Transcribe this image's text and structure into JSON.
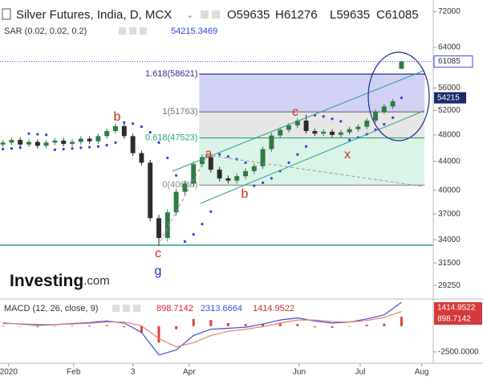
{
  "chart_data": [
    {
      "type": "candlestick",
      "title": "Silver Futures, India, D, MCX",
      "ohlc_labels": [
        "O59635",
        "H61276",
        "L59635",
        "C61085"
      ],
      "x": [
        1,
        4,
        7,
        10,
        13,
        16,
        19,
        22,
        25,
        28,
        31,
        34,
        37,
        40,
        43,
        46,
        49,
        52,
        55,
        58,
        61,
        64,
        67,
        70,
        73,
        76,
        79,
        82,
        85,
        88,
        91,
        94,
        97,
        100,
        103,
        106,
        109,
        112,
        115,
        118,
        121,
        124,
        127,
        130,
        133,
        136,
        139
      ],
      "open": [
        46500,
        46800,
        47200,
        46500,
        46900,
        46300,
        46800,
        47100,
        46600,
        46900,
        47400,
        47000,
        47800,
        48600,
        49400,
        47800,
        45200,
        43800,
        36500,
        34200,
        37200,
        39800,
        40900,
        43600,
        44600,
        42800,
        41600,
        41300,
        41900,
        42600,
        43300,
        45800,
        47900,
        48800,
        49500,
        50300,
        48600,
        48200,
        48500,
        48000,
        48400,
        48900,
        49300,
        50300,
        51800,
        52700,
        59635
      ],
      "high": [
        47200,
        47600,
        47600,
        47300,
        47300,
        47200,
        47500,
        47500,
        47300,
        47800,
        47800,
        48200,
        49000,
        49800,
        49800,
        48200,
        45600,
        44200,
        36900,
        37600,
        40200,
        41300,
        44000,
        45000,
        45000,
        43200,
        42000,
        42300,
        43000,
        43700,
        46200,
        48300,
        49200,
        49900,
        50700,
        51300,
        49000,
        48900,
        48900,
        48800,
        49300,
        49700,
        50700,
        52200,
        53100,
        54000,
        61276
      ],
      "low": [
        46100,
        46400,
        46100,
        46100,
        45900,
        45900,
        46400,
        46200,
        46200,
        46500,
        46600,
        46600,
        47400,
        48200,
        47400,
        44800,
        43400,
        36100,
        33300,
        33800,
        36800,
        39400,
        40500,
        43200,
        42400,
        41200,
        40900,
        40900,
        41500,
        42200,
        42900,
        45400,
        47500,
        48400,
        49100,
        48200,
        47800,
        47800,
        47600,
        47600,
        48000,
        48500,
        48900,
        49900,
        51400,
        52300,
        59635
      ],
      "close": [
        46800,
        47200,
        46500,
        46900,
        46300,
        46800,
        47100,
        46600,
        46900,
        47400,
        47000,
        47800,
        48600,
        49400,
        47800,
        45200,
        43800,
        36500,
        34200,
        37200,
        39800,
        40900,
        43600,
        44600,
        42800,
        41600,
        41300,
        41900,
        42600,
        43300,
        45800,
        47900,
        48800,
        49500,
        50300,
        48600,
        48200,
        48500,
        48000,
        48400,
        48900,
        49300,
        50300,
        51800,
        52700,
        53600,
        61085
      ],
      "color_up": "#2f7a45",
      "color_down": "#2b2b2b",
      "log_scale": true,
      "xlim": [
        0,
        150
      ],
      "xticks": [
        {
          "value": 3,
          "label": "2020"
        },
        {
          "value": 25.5,
          "label": "Feb"
        },
        {
          "value": 46,
          "label": "3"
        },
        {
          "value": 65.5,
          "label": "Apr"
        },
        {
          "value": 103.6,
          "label": "Jun"
        },
        {
          "value": 124.7,
          "label": "Jul"
        },
        {
          "value": 146,
          "label": "Aug"
        }
      ],
      "ylim": [
        28500,
        74000
      ],
      "yticks": [
        72000,
        64000,
        56000,
        52000,
        48000,
        44000,
        40000,
        37000,
        34000,
        31500,
        29250
      ],
      "sar": {
        "name": "SAR (0.02, 0.02, 0.2)",
        "color": "#2f3de6",
        "values": [
          45800,
          45900,
          46000,
          48200,
          48100,
          48000,
          45700,
          45800,
          45900,
          46000,
          46100,
          46200,
          46400,
          46800,
          50000,
          49800,
          49300,
          48400,
          46800,
          44500,
          42000,
          33800,
          34600,
          35800,
          37300,
          45000,
          44700,
          44300,
          43800,
          40600,
          41000,
          41600,
          42600,
          43800,
          45000,
          46200,
          51200,
          51000,
          50600,
          50200,
          47200,
          47600,
          48100,
          48800,
          49700,
          50800,
          54215.3469
        ],
        "value_label": "54215"
      },
      "fib": {
        "xrange": [
          69,
          147
        ],
        "levels": [
          {
            "label": "1.618(58621)",
            "value": 58621,
            "color": "#2d2d8f"
          },
          {
            "label": "1(51763)",
            "value": 51763,
            "color": "#777777"
          },
          {
            "label": "0.618(47523)",
            "value": 47523,
            "color": "#29a37a"
          },
          {
            "label": "0(40685)",
            "value": 40685,
            "color": "#888888"
          }
        ],
        "fills": [
          "#c9c9f2",
          "#e3e3e3",
          "#d5f2e4"
        ]
      },
      "support": 33400,
      "support_color": "#2a9d8f",
      "annotations": [
        "b",
        "c",
        "g",
        "a",
        "b",
        "c",
        "x"
      ]
    },
    {
      "type": "macd",
      "title": "MACD (12, 26, close, 9)",
      "x": [
        1,
        7,
        13,
        19,
        25,
        31,
        37,
        43,
        49,
        55,
        61,
        67,
        73,
        79,
        85,
        91,
        97,
        103,
        109,
        115,
        121,
        127,
        133,
        139
      ],
      "series": [
        {
          "color": "#3f4fd8",
          "values": [
            300,
            200,
            100,
            150,
            250,
            350,
            500,
            300,
            -600,
            -2800,
            -2300,
            -900,
            -300,
            -200,
            -100,
            200,
            600,
            800,
            500,
            300,
            400,
            700,
            1100,
            2313.6664
          ]
        },
        {
          "color": "#e8826a",
          "values": [
            250,
            230,
            180,
            160,
            200,
            280,
            400,
            400,
            50,
            -1200,
            -2000,
            -1600,
            -900,
            -500,
            -300,
            -50,
            300,
            600,
            600,
            450,
            400,
            550,
            850,
            1414.9522
          ]
        }
      ],
      "histogram": {
        "color": "#e04040",
        "values": [
          50,
          -30,
          -80,
          -10,
          50,
          70,
          100,
          -100,
          -650,
          -1600,
          -300,
          700,
          600,
          300,
          200,
          250,
          300,
          200,
          -100,
          -150,
          0,
          150,
          250,
          898.7142
        ]
      },
      "xlim": [
        0,
        150
      ],
      "ylim": [
        -3600,
        2400
      ],
      "yticks": [
        {
          "value": -2500,
          "label": "-2500.0000"
        }
      ]
    }
  ],
  "logo": {
    "main": "Investing",
    "suffix": ".com"
  }
}
